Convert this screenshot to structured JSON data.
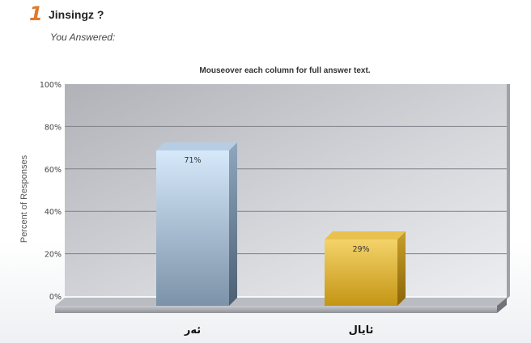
{
  "question": {
    "number": "1",
    "title": "Jinsingz ?",
    "answered_label": "You Answered:"
  },
  "chart_data": {
    "type": "bar",
    "title": "Mouseover each column for full answer text.",
    "ylabel": "Percent of Responses",
    "xlabel": "",
    "categories": [
      "ئەر",
      "ئايال"
    ],
    "values": [
      71,
      29
    ],
    "data_labels": [
      "71%",
      "29%"
    ],
    "ylim": [
      0,
      100
    ],
    "yticks": [
      "0%",
      "20%",
      "40%",
      "60%",
      "80%",
      "100%"
    ],
    "grid": true,
    "colors": {
      "bar1_top": "#cfe3f7",
      "bar1_bottom": "#7f95aa",
      "bar2_top": "#f2cf63",
      "bar2_bottom": "#c89a16",
      "plot_bg_left": "#b4b6bc",
      "plot_bg_right": "#e6e8ec",
      "title_color": "#333333"
    }
  }
}
